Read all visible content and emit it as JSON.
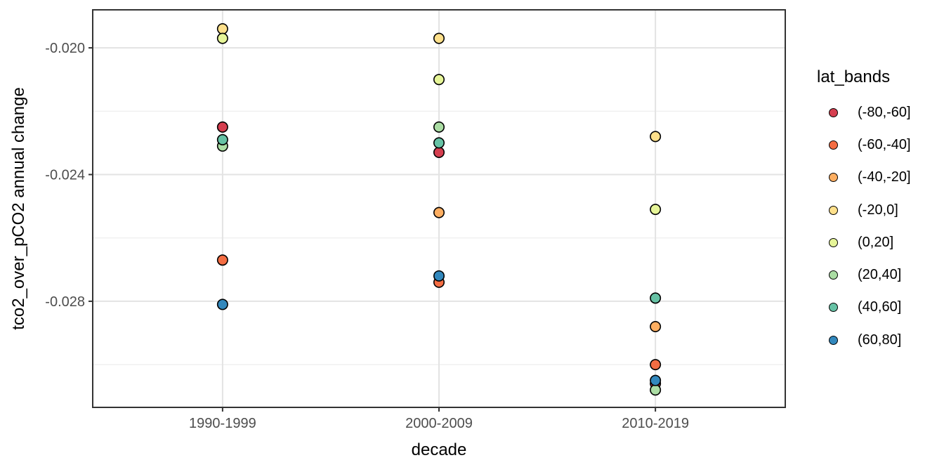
{
  "chart_data": {
    "type": "scatter",
    "title": "",
    "xlabel": "decade",
    "ylabel": "tco2_over_pCO2 annual change",
    "legend_title": "lat_bands",
    "legend_position": "right",
    "grid": true,
    "categories": [
      "1990-1999",
      "2000-2009",
      "2010-2019"
    ],
    "ylim": [
      -0.03135,
      -0.0188
    ],
    "yticks": [
      -0.02,
      -0.024,
      -0.028
    ],
    "ytick_labels": [
      "-0.020",
      "-0.024",
      "-0.028"
    ],
    "yticks_minor": [
      -0.022,
      -0.026,
      -0.03
    ],
    "point_style": {
      "radius": 7.2,
      "stroke": "#000000",
      "stroke_width": 1.6
    },
    "series": [
      {
        "name": "(-80,-60]",
        "color": "#d53e4f",
        "values": [
          -0.0225,
          -0.0233,
          -0.0306
        ]
      },
      {
        "name": "(-60,-40]",
        "color": "#f46d43",
        "values": [
          -0.0267,
          -0.0274,
          -0.03
        ]
      },
      {
        "name": "(-40,-20]",
        "color": "#fdae61",
        "values": [
          null,
          -0.0252,
          -0.0288
        ]
      },
      {
        "name": "(-20,0]",
        "color": "#fee08b",
        "values": [
          -0.0194,
          -0.0197,
          -0.0228
        ]
      },
      {
        "name": "(0,20]",
        "color": "#e6f598",
        "values": [
          -0.0197,
          -0.021,
          -0.0251
        ]
      },
      {
        "name": "(20,40]",
        "color": "#abdda4",
        "values": [
          -0.0231,
          -0.0225,
          -0.0308
        ]
      },
      {
        "name": "(40,60]",
        "color": "#66c2a5",
        "values": [
          -0.0229,
          -0.023,
          -0.0279
        ]
      },
      {
        "name": "(60,80]",
        "color": "#3288bd",
        "values": [
          -0.0281,
          -0.0272,
          -0.0305
        ]
      }
    ]
  }
}
